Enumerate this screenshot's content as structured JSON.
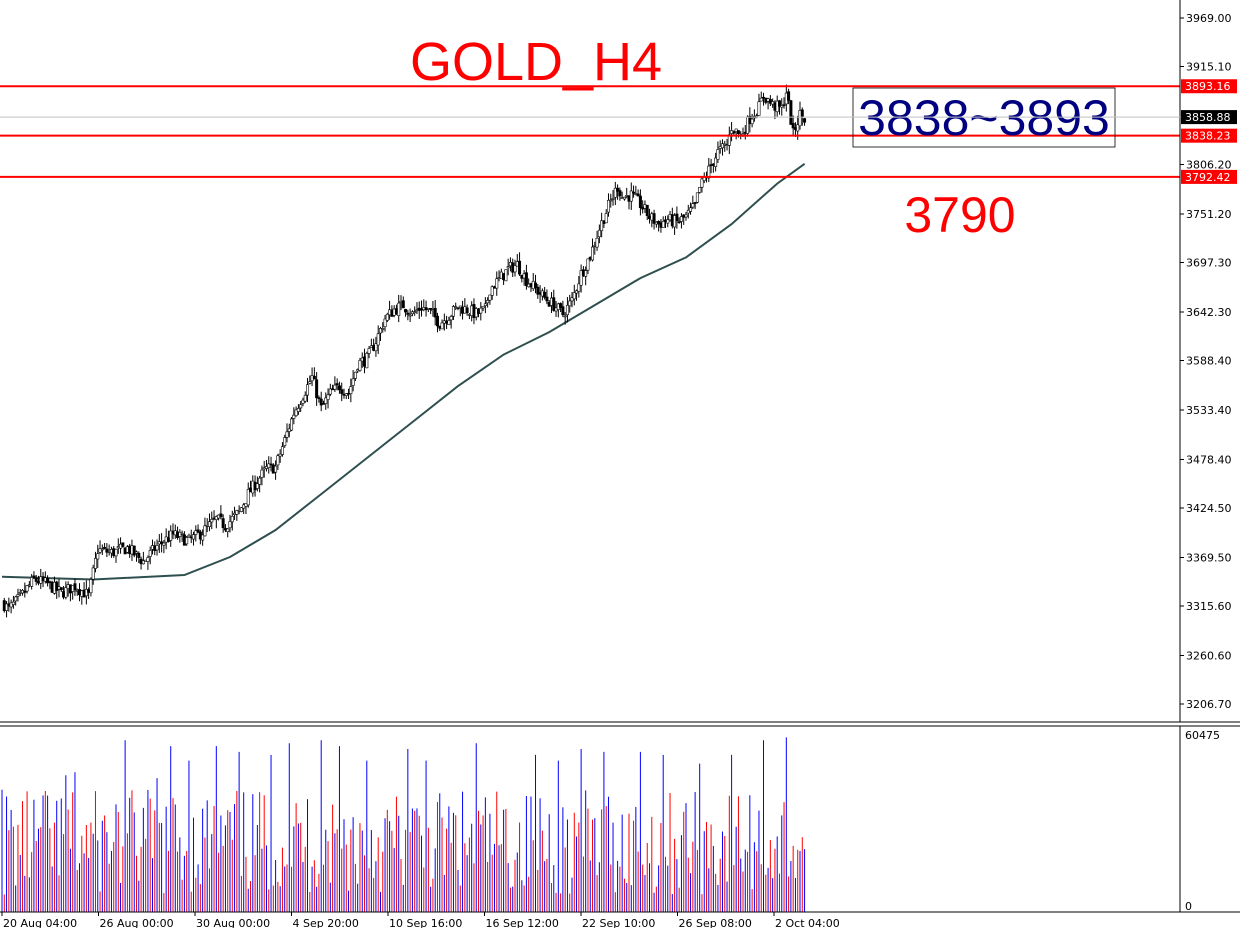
{
  "chart_data": {
    "type": "candlestick",
    "title": "GOLD_H4",
    "price_axis": {
      "ticks": [
        "3969.00",
        "3915.10",
        "3806.20",
        "3751.20",
        "3697.30",
        "3642.30",
        "3588.40",
        "3533.40",
        "3478.40",
        "3424.50",
        "3369.50",
        "3315.60",
        "3260.60",
        "3206.70"
      ],
      "ylim": [
        3180,
        3990
      ]
    },
    "time_axis": {
      "ticks": [
        "20 Aug 04:00",
        "26 Aug 00:00",
        "30 Aug 00:00",
        "4 Sep 20:00",
        "10 Sep 16:00",
        "16 Sep 12:00",
        "22 Sep 10:00",
        "26 Sep 08:00",
        "2 Oct 04:00"
      ]
    },
    "price_path": [
      [
        0,
        3320
      ],
      [
        3,
        3312
      ],
      [
        8,
        3325
      ],
      [
        14,
        3345
      ],
      [
        20,
        3340
      ],
      [
        26,
        3330
      ],
      [
        32,
        3338
      ],
      [
        38,
        3327
      ],
      [
        42,
        3378
      ],
      [
        48,
        3375
      ],
      [
        55,
        3380
      ],
      [
        62,
        3365
      ],
      [
        68,
        3382
      ],
      [
        75,
        3395
      ],
      [
        82,
        3388
      ],
      [
        88,
        3398
      ],
      [
        94,
        3412
      ],
      [
        98,
        3405
      ],
      [
        104,
        3420
      ],
      [
        108,
        3440
      ],
      [
        112,
        3455
      ],
      [
        116,
        3468
      ],
      [
        120,
        3470
      ],
      [
        124,
        3500
      ],
      [
        128,
        3530
      ],
      [
        132,
        3550
      ],
      [
        136,
        3570
      ],
      [
        140,
        3535
      ],
      [
        144,
        3552
      ],
      [
        148,
        3560
      ],
      [
        152,
        3552
      ],
      [
        156,
        3585
      ],
      [
        160,
        3590
      ],
      [
        164,
        3610
      ],
      [
        168,
        3635
      ],
      [
        172,
        3645
      ],
      [
        176,
        3650
      ],
      [
        180,
        3640
      ],
      [
        184,
        3648
      ],
      [
        188,
        3642
      ],
      [
        192,
        3630
      ],
      [
        196,
        3638
      ],
      [
        200,
        3648
      ],
      [
        204,
        3645
      ],
      [
        208,
        3640
      ],
      [
        212,
        3645
      ],
      [
        214,
        3668
      ],
      [
        218,
        3678
      ],
      [
        222,
        3690
      ],
      [
        226,
        3695
      ],
      [
        230,
        3678
      ],
      [
        234,
        3668
      ],
      [
        238,
        3658
      ],
      [
        242,
        3650
      ],
      [
        246,
        3640
      ],
      [
        250,
        3655
      ],
      [
        254,
        3685
      ],
      [
        258,
        3705
      ],
      [
        262,
        3735
      ],
      [
        266,
        3760
      ],
      [
        270,
        3782
      ],
      [
        272,
        3770
      ],
      [
        276,
        3772
      ],
      [
        280,
        3762
      ],
      [
        284,
        3748
      ],
      [
        288,
        3740
      ],
      [
        292,
        3745
      ],
      [
        296,
        3742
      ],
      [
        300,
        3748
      ],
      [
        304,
        3760
      ],
      [
        306,
        3780
      ],
      [
        310,
        3800
      ],
      [
        314,
        3820
      ],
      [
        318,
        3828
      ],
      [
        320,
        3848
      ],
      [
        324,
        3838
      ],
      [
        328,
        3858
      ],
      [
        332,
        3870
      ],
      [
        334,
        3883
      ],
      [
        338,
        3872
      ],
      [
        342,
        3868
      ],
      [
        344,
        3888
      ],
      [
        347,
        3840
      ],
      [
        350,
        3862
      ],
      [
        352,
        3857
      ]
    ],
    "moving_average": [
      [
        0,
        3348
      ],
      [
        40,
        3345
      ],
      [
        80,
        3350
      ],
      [
        100,
        3370
      ],
      [
        120,
        3400
      ],
      [
        140,
        3440
      ],
      [
        160,
        3480
      ],
      [
        180,
        3520
      ],
      [
        200,
        3560
      ],
      [
        220,
        3595
      ],
      [
        240,
        3620
      ],
      [
        260,
        3650
      ],
      [
        280,
        3680
      ],
      [
        300,
        3703
      ],
      [
        320,
        3740
      ],
      [
        340,
        3785
      ],
      [
        352,
        3807
      ]
    ],
    "volume_axis": {
      "ticks": [
        "60475",
        "0"
      ],
      "ylim": [
        0,
        60475
      ]
    },
    "volume_peak_bars": [
      [
        0,
        42000
      ],
      [
        20,
        40000
      ],
      [
        28,
        47000
      ],
      [
        32,
        48000
      ],
      [
        50,
        37000
      ],
      [
        54,
        59000
      ],
      [
        68,
        46000
      ],
      [
        74,
        57000
      ],
      [
        82,
        52000
      ],
      [
        94,
        57000
      ],
      [
        104,
        55000
      ],
      [
        118,
        54000
      ],
      [
        126,
        58000
      ],
      [
        140,
        59000
      ],
      [
        148,
        57000
      ],
      [
        160,
        52000
      ],
      [
        178,
        56000
      ],
      [
        186,
        52000
      ],
      [
        208,
        58000
      ],
      [
        234,
        54000
      ],
      [
        244,
        52000
      ],
      [
        254,
        56000
      ],
      [
        264,
        55000
      ],
      [
        280,
        55000
      ],
      [
        290,
        54000
      ],
      [
        306,
        51000
      ],
      [
        320,
        54000
      ],
      [
        334,
        59000
      ],
      [
        344,
        60000
      ]
    ],
    "levels": [
      {
        "value": 3893.16,
        "label": "3893.16",
        "color": "#ff0000"
      },
      {
        "value": 3838.23,
        "label": "3838.23",
        "color": "#ff0000"
      },
      {
        "value": 3792.42,
        "label": "3792.42",
        "color": "#ff0000"
      }
    ],
    "current_price": {
      "value": 3858.88,
      "label": "3858.88"
    },
    "annotations": {
      "range_text": "3838~3893",
      "target_text": "3790"
    },
    "colors": {
      "candle": "#000000",
      "moving_average": "#2f4f4f",
      "level": "#ff0000",
      "volume_up": "#0000ff",
      "volume_down": "#ff0000",
      "range_text": "#000080"
    }
  }
}
